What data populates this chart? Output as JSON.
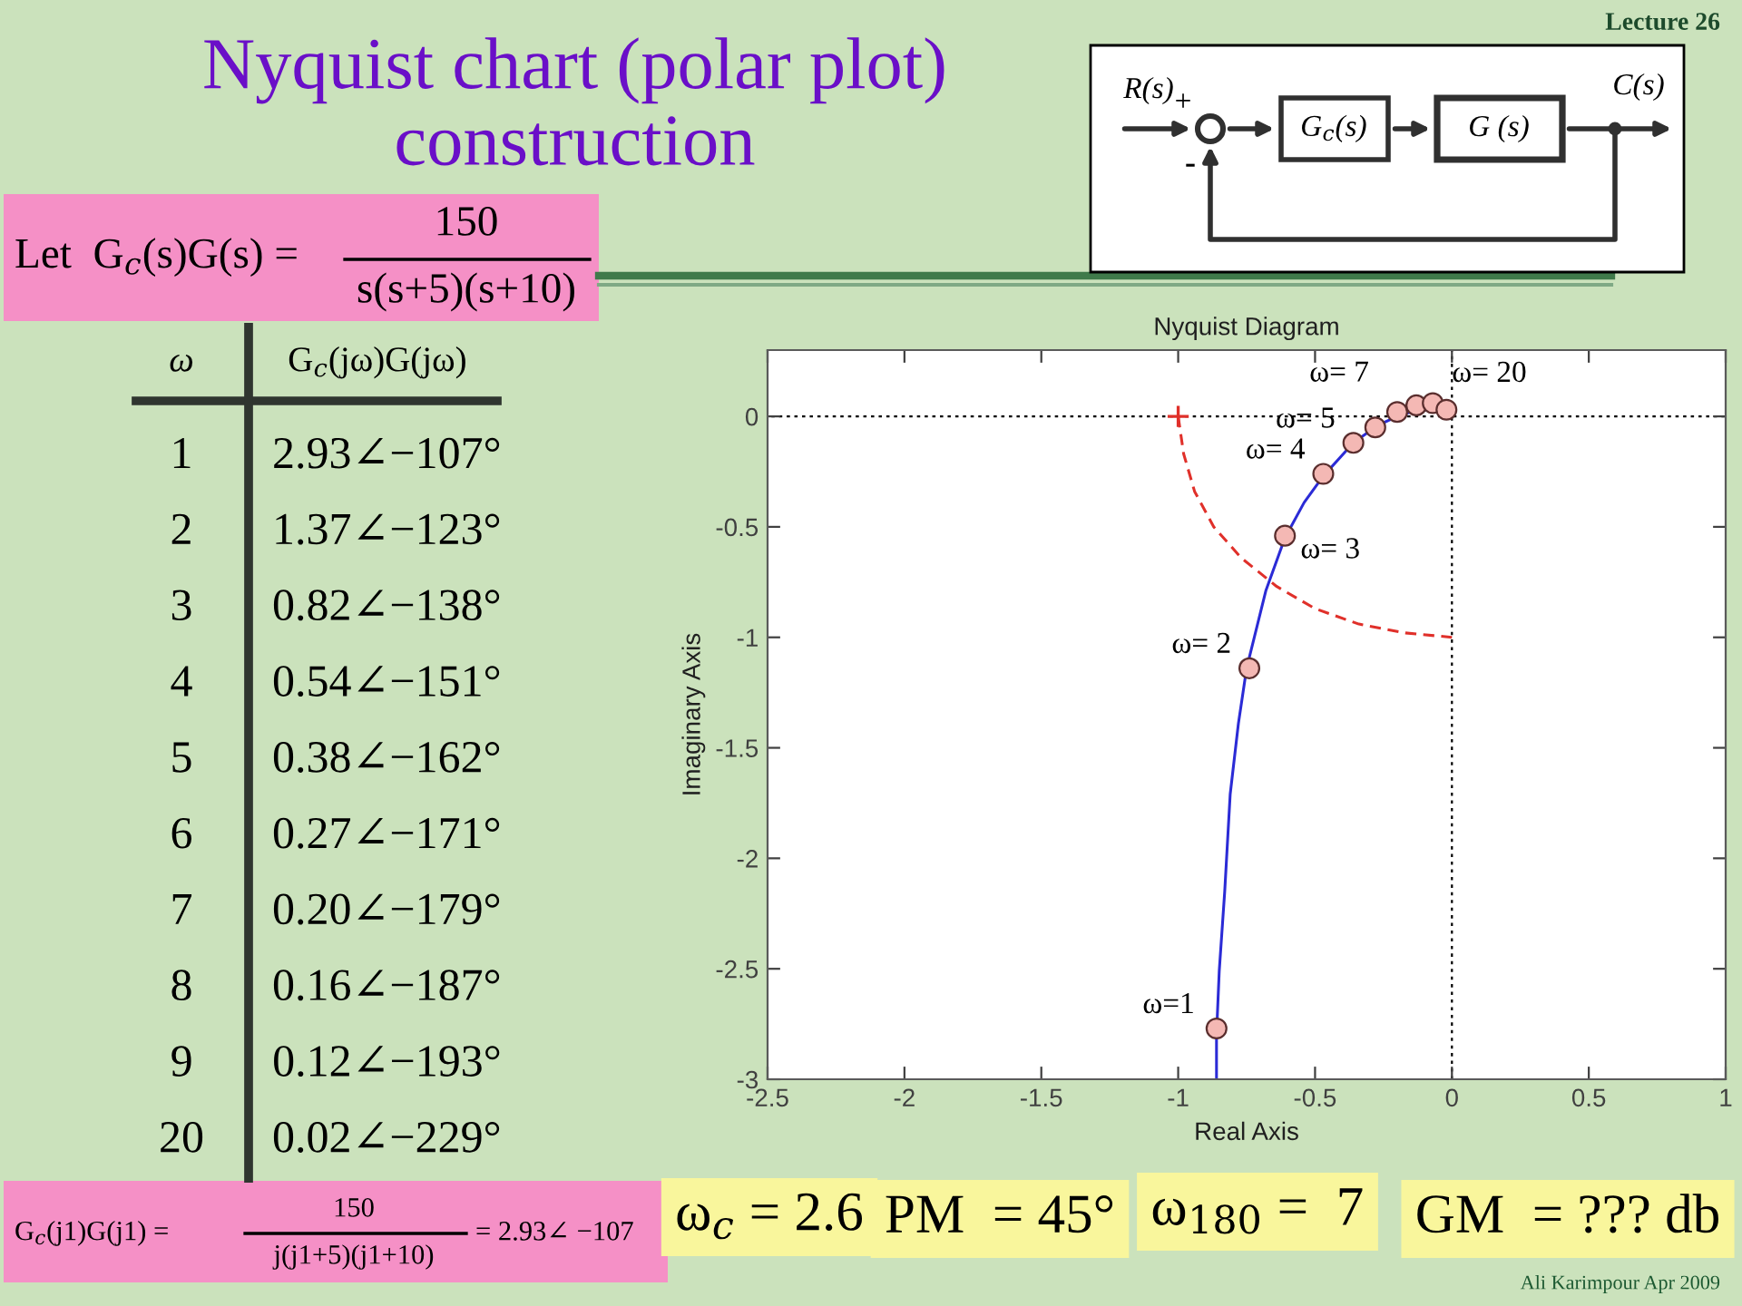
{
  "chart_data": [
    {
      "type": "other",
      "title": "Nyquist chart (polar plot) construction",
      "annotations": [
        "Lecture 26",
        "Let  G$_{c}$(s)G(s) =",
        "150",
        "s(s+5)(s+10)",
        "R(s)",
        "+",
        "-",
        "G$_{c}$(s)",
        "G (s)",
        "C(s)",
        "G$_{c}$(j1)G(j1) =",
        "150",
        "j(j1+5)(j1+10)",
        "= 2.93∠ −107",
        "ω$_{c}$ = 2.6",
        "PM  = 45°",
        "ω$_{180}$ =  7",
        "GM  = ??? db",
        "Ali Karimpour Apr 2009"
      ]
    },
    {
      "type": "other",
      "annotations": [
        "ω",
        "G$_{c}$(jω)G(jω)",
        "1 2.93∠−107°",
        "2 1.37∠−123°",
        "3 0.82∠−138°",
        "4 0.54∠−151°",
        "5 0.38∠−162°",
        "6 0.27∠−171°",
        "7 0.20∠−179°",
        "8 0.16∠−187°",
        "9 0.12∠−193°",
        "20 0.02∠−229°"
      ]
    },
    {
      "type": "line",
      "title": "Nyquist Diagram",
      "xlabel": "Real Axis",
      "ylabel": "Imaginary Axis",
      "xlim": [
        -2.5,
        1
      ],
      "ylim": [
        -3,
        0.3
      ],
      "xticks": [
        -2.5,
        -2,
        -1.5,
        -1,
        -0.5,
        0,
        0.5,
        1
      ],
      "yticks": [
        -3,
        -2.5,
        -2,
        -1.5,
        -1,
        -0.5,
        0
      ],
      "series": [
        {
          "type": "line",
          "color": "#2b2bd6",
          "line_style": "solid",
          "x": [
            -0.86,
            -0.86,
            -0.85,
            -0.83,
            -0.81,
            -0.78,
            -0.75,
            -0.68,
            -0.61,
            -0.54,
            -0.47,
            -0.36,
            -0.27,
            -0.2,
            -0.15,
            -0.09
          ],
          "values": [
            -3,
            -2.8,
            -2.51,
            -2.15,
            -1.71,
            -1.39,
            -1.14,
            -0.79,
            -0.55,
            -0.39,
            -0.27,
            -0.12,
            -0.04,
            0,
            0.02,
            0.03
          ]
        },
        {
          "type": "line",
          "color": "#e0302a",
          "line_style": "dashed",
          "x": [
            -1,
            -0.98,
            -0.94,
            -0.87,
            -0.77,
            -0.64,
            -0.5,
            -0.34,
            -0.17,
            0
          ],
          "values": [
            0,
            -0.17,
            -0.34,
            -0.5,
            -0.64,
            -0.77,
            -0.87,
            -0.94,
            -0.98,
            -1
          ]
        },
        {
          "type": "scatter",
          "color": "#e0302a",
          "marker": "cross",
          "x": [
            -1
          ],
          "values": [
            0
          ]
        },
        {
          "type": "scatter",
          "color": "#f4b8b4",
          "marker": "circle",
          "x": [
            -0.86,
            -0.74,
            -0.61,
            -0.47,
            -0.36,
            -0.28,
            -0.2,
            -0.13,
            -0.07,
            -0.02
          ],
          "values": [
            -2.77,
            -1.14,
            -0.54,
            -0.26,
            -0.12,
            -0.05,
            0.02,
            0.05,
            0.06,
            0.03
          ]
        }
      ],
      "ref_lines": [
        {
          "axis": "x",
          "value": 0,
          "color": "#000000",
          "line_style": "dotted"
        },
        {
          "axis": "y",
          "value": 0,
          "color": "#000000",
          "line_style": "dotted"
        }
      ],
      "annotations": [
        {
          "text": "ω=1",
          "x": -0.86,
          "y": -2.77
        },
        {
          "text": "ω= 2",
          "x": -0.74,
          "y": -1.14
        },
        {
          "text": "ω= 3",
          "x": -0.61,
          "y": -0.54
        },
        {
          "text": "ω= 4",
          "x": -0.47,
          "y": -0.26
        },
        {
          "text": "ω= 5",
          "x": -0.36,
          "y": -0.12
        },
        {
          "text": "ω= 7",
          "x": -0.2,
          "y": 0.02
        },
        {
          "text": "ω= 20",
          "x": -0.02,
          "y": 0.03
        }
      ]
    }
  ]
}
